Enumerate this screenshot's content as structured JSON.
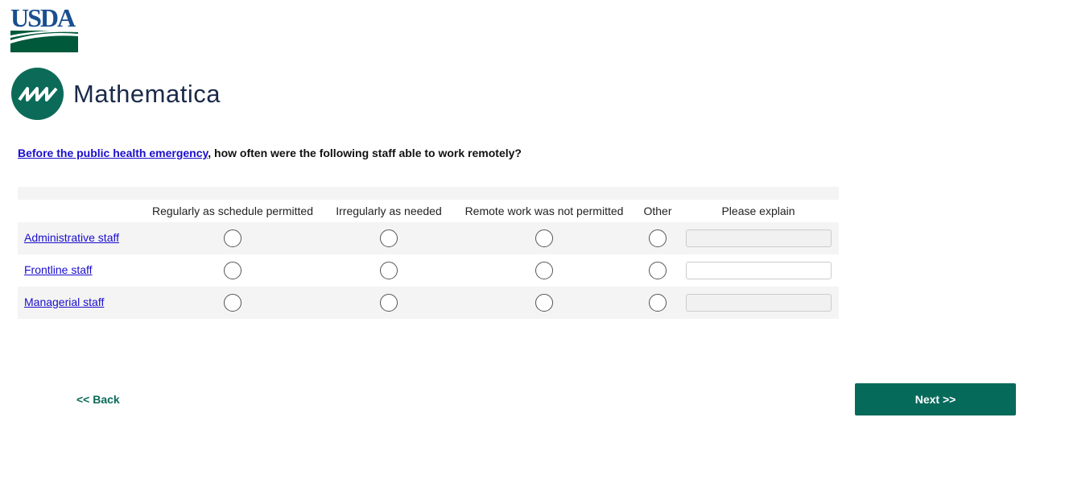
{
  "logos": {
    "usda": "USDA",
    "mathematica": "Mathematica"
  },
  "question": {
    "link": "Before the public health emergency",
    "text": ", how often were the following staff able to work remotely?"
  },
  "columns": [
    "Regularly as schedule permitted",
    "Irregularly as needed",
    "Remote work was not permitted",
    "Other",
    "Please explain"
  ],
  "rows": [
    {
      "label": "Administrative staff",
      "explain": ""
    },
    {
      "label": "Frontline staff",
      "explain": ""
    },
    {
      "label": "Managerial staff",
      "explain": ""
    }
  ],
  "nav": {
    "back": "<< Back",
    "next": "Next >>"
  },
  "colors": {
    "brand": "#066a5b",
    "link": "#1a0dcc"
  }
}
